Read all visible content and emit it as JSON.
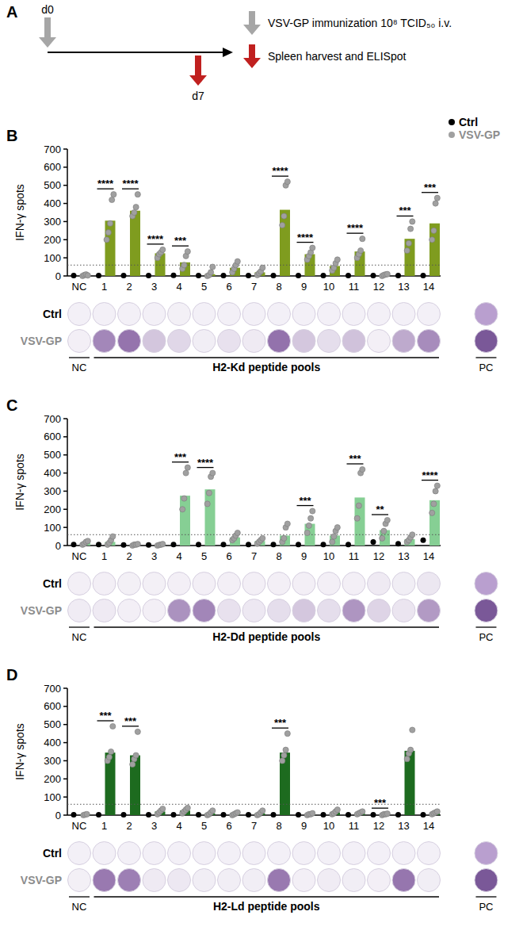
{
  "timeline": {
    "letter": "A",
    "start": "d0",
    "end": "d7",
    "steps": [
      {
        "label": "VSV-GP immunization 10⁸ TCID₅₀ i.v.",
        "color": "#a6a6a6"
      },
      {
        "label": "Spleen harvest and ELISpot",
        "color": "#c0201f"
      }
    ]
  },
  "chart_data": [
    {
      "type": "bar",
      "panel": "B",
      "y_label": "IFN-γ spots",
      "color": "#7f9c1f",
      "legend": "top-right",
      "categories": [
        "NC",
        "1",
        "2",
        "3",
        "4",
        "5",
        "6",
        "7",
        "8",
        "9",
        "10",
        "11",
        "12",
        "13",
        "14"
      ],
      "ylim": [
        0,
        700
      ],
      "yticks": [
        0,
        100,
        200,
        300,
        400,
        500,
        600,
        700
      ],
      "threshold": 60,
      "series": [
        {
          "name": "Ctrl",
          "color": "#000000",
          "type": "scatter",
          "values": [
            2,
            2,
            2,
            2,
            3,
            2,
            2,
            2,
            2,
            2,
            2,
            2,
            2,
            2,
            2
          ]
        },
        {
          "name": "VSV-GP",
          "color": "#a0a0a0",
          "type": "bar",
          "values": [
            5,
            305,
            360,
            125,
            75,
            10,
            45,
            20,
            365,
            120,
            55,
            135,
            5,
            205,
            290
          ],
          "points": [
            [
              0,
              5,
              8,
              3
            ],
            [
              200,
              240,
              290,
              420,
              450
            ],
            [
              330,
              350,
              380,
              450
            ],
            [
              100,
              120,
              130,
              145
            ],
            [
              40,
              60,
              110,
              135
            ],
            [
              0,
              5,
              20,
              50
            ],
            [
              20,
              40,
              60,
              80
            ],
            [
              5,
              15,
              25,
              45
            ],
            [
              280,
              330,
              500,
              520
            ],
            [
              90,
              110,
              130,
              155
            ],
            [
              30,
              45,
              70,
              90
            ],
            [
              100,
              120,
              140,
              205
            ],
            [
              0,
              5,
              8,
              10
            ],
            [
              140,
              180,
              260,
              300
            ],
            [
              200,
              250,
              400,
              430
            ]
          ]
        }
      ],
      "significance": [
        null,
        "****",
        "****",
        "****",
        "***",
        null,
        null,
        null,
        "****",
        "****",
        null,
        "****",
        null,
        "***",
        "***"
      ],
      "wells": {
        "negative": "NC",
        "group": "H2-Kd peptide pools",
        "positive": "PC"
      }
    },
    {
      "type": "bar",
      "panel": "C",
      "y_label": "IFN-γ spots",
      "color": "#86cf94",
      "categories": [
        "NC",
        "1",
        "2",
        "3",
        "4",
        "5",
        "6",
        "7",
        "8",
        "9",
        "10",
        "11",
        "12",
        "13",
        "14"
      ],
      "ylim": [
        0,
        700
      ],
      "yticks": [
        0,
        100,
        200,
        300,
        400,
        500,
        600,
        700
      ],
      "threshold": 60,
      "series": [
        {
          "name": "Ctrl",
          "color": "#000000",
          "type": "scatter",
          "values": [
            5,
            5,
            3,
            3,
            5,
            5,
            5,
            5,
            5,
            5,
            5,
            5,
            20,
            10,
            30
          ]
        },
        {
          "name": "VSV-GP",
          "color": "#a0a0a0",
          "type": "bar",
          "values": [
            15,
            20,
            5,
            5,
            275,
            310,
            45,
            25,
            55,
            120,
            55,
            265,
            85,
            35,
            250
          ],
          "points": [
            [
              5,
              10,
              20,
              25
            ],
            [
              5,
              15,
              30,
              50
            ],
            [
              0,
              5,
              5,
              8
            ],
            [
              0,
              3,
              5,
              8
            ],
            [
              200,
              260,
              400,
              430
            ],
            [
              230,
              290,
              380,
              400
            ],
            [
              30,
              40,
              55,
              70
            ],
            [
              10,
              20,
              30,
              40
            ],
            [
              20,
              40,
              100,
              120
            ],
            [
              70,
              110,
              150,
              190
            ],
            [
              20,
              50,
              80,
              100
            ],
            [
              150,
              220,
              400,
              420
            ],
            [
              40,
              80,
              120,
              140
            ],
            [
              20,
              30,
              45,
              60
            ],
            [
              180,
              230,
              300,
              330
            ]
          ]
        }
      ],
      "significance": [
        null,
        null,
        null,
        null,
        "***",
        "****",
        null,
        null,
        null,
        "***",
        null,
        "***",
        "**",
        null,
        "****"
      ],
      "wells": {
        "negative": "NC",
        "group": "H2-Dd peptide pools",
        "positive": "PC"
      }
    },
    {
      "type": "bar",
      "panel": "D",
      "y_label": "IFN-γ spots",
      "color": "#1d6b1f",
      "categories": [
        "NC",
        "1",
        "2",
        "3",
        "4",
        "5",
        "6",
        "7",
        "8",
        "9",
        "10",
        "11",
        "12",
        "13",
        "14"
      ],
      "ylim": [
        0,
        700
      ],
      "yticks": [
        0,
        100,
        200,
        300,
        400,
        500,
        600,
        700
      ],
      "threshold": 60,
      "series": [
        {
          "name": "Ctrl",
          "color": "#000000",
          "type": "scatter",
          "values": [
            2,
            2,
            2,
            2,
            2,
            2,
            2,
            2,
            2,
            2,
            2,
            2,
            2,
            2,
            2
          ]
        },
        {
          "name": "VSV-GP",
          "color": "#a0a0a0",
          "type": "bar",
          "values": [
            3,
            345,
            330,
            20,
            25,
            10,
            10,
            10,
            345,
            5,
            15,
            10,
            5,
            355,
            10
          ],
          "points": [
            [
              0,
              3,
              5
            ],
            [
              300,
              320,
              350,
              490
            ],
            [
              280,
              310,
              330,
              460
            ],
            [
              5,
              15,
              25,
              35
            ],
            [
              10,
              20,
              30,
              40
            ],
            [
              0,
              5,
              15,
              25
            ],
            [
              0,
              5,
              10,
              15
            ],
            [
              0,
              5,
              15,
              25
            ],
            [
              300,
              330,
              360,
              450
            ],
            [
              0,
              5,
              5,
              10
            ],
            [
              5,
              10,
              20,
              30
            ],
            [
              5,
              10,
              15,
              20
            ],
            [
              0,
              5,
              5,
              8
            ],
            [
              310,
              340,
              360,
              470
            ],
            [
              5,
              10,
              15,
              20
            ]
          ]
        }
      ],
      "significance": [
        null,
        "***",
        "***",
        null,
        null,
        null,
        null,
        null,
        "***",
        null,
        null,
        null,
        "***",
        null,
        null
      ],
      "wells": {
        "negative": "NC",
        "group": "H2-Ld peptide pools",
        "positive": "PC"
      }
    }
  ]
}
